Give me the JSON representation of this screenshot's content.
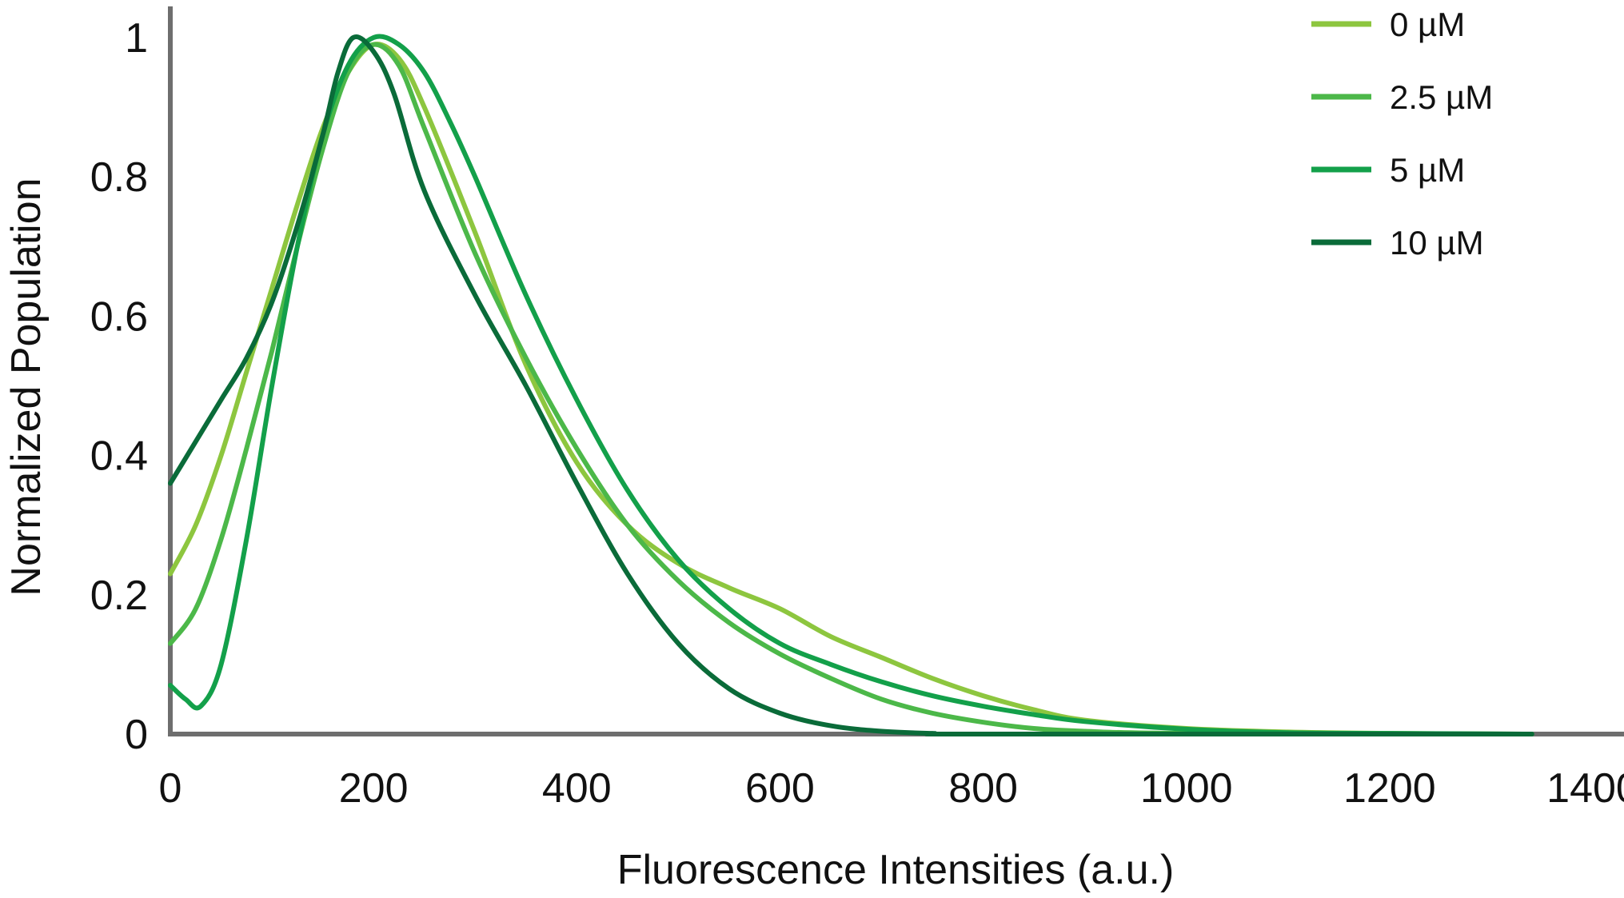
{
  "chart_data": {
    "type": "line",
    "title": "",
    "xlabel": "Fluorescence Intensities (a.u.)",
    "ylabel": "Normalized Population",
    "xlim": [
      0,
      1400
    ],
    "ylim": [
      0,
      1
    ],
    "x_ticks": [
      0,
      200,
      400,
      600,
      800,
      1000,
      1200,
      1400
    ],
    "y_ticks": [
      0,
      0.2,
      0.4,
      0.6,
      0.8,
      1
    ],
    "x_tick_labels": [
      "0",
      "200",
      "400",
      "600",
      "800",
      "1000",
      "1200",
      "1400"
    ],
    "y_tick_labels": [
      "0",
      "0.2",
      "0.4",
      "0.6",
      "0.8",
      "1"
    ],
    "grid": false,
    "legend_position": "top-right",
    "series": [
      {
        "name": "0 µM",
        "color": "#8DC63F",
        "points": [
          [
            0,
            0.23
          ],
          [
            25,
            0.3
          ],
          [
            50,
            0.4
          ],
          [
            75,
            0.52
          ],
          [
            100,
            0.64
          ],
          [
            125,
            0.76
          ],
          [
            150,
            0.87
          ],
          [
            175,
            0.95
          ],
          [
            200,
            0.99
          ],
          [
            225,
            0.97
          ],
          [
            250,
            0.9
          ],
          [
            300,
            0.72
          ],
          [
            350,
            0.53
          ],
          [
            400,
            0.39
          ],
          [
            450,
            0.3
          ],
          [
            500,
            0.245
          ],
          [
            550,
            0.21
          ],
          [
            600,
            0.18
          ],
          [
            650,
            0.14
          ],
          [
            700,
            0.11
          ],
          [
            750,
            0.08
          ],
          [
            800,
            0.055
          ],
          [
            850,
            0.035
          ],
          [
            900,
            0.02
          ],
          [
            1000,
            0.008
          ],
          [
            1100,
            0.003
          ],
          [
            1200,
            0.001
          ],
          [
            1340,
            0
          ]
        ]
      },
      {
        "name": "2.5 µM",
        "color": "#4CB849",
        "points": [
          [
            0,
            0.13
          ],
          [
            25,
            0.18
          ],
          [
            50,
            0.28
          ],
          [
            75,
            0.41
          ],
          [
            100,
            0.55
          ],
          [
            125,
            0.7
          ],
          [
            150,
            0.84
          ],
          [
            175,
            0.95
          ],
          [
            200,
            0.99
          ],
          [
            225,
            0.96
          ],
          [
            250,
            0.87
          ],
          [
            300,
            0.69
          ],
          [
            350,
            0.54
          ],
          [
            400,
            0.41
          ],
          [
            450,
            0.3
          ],
          [
            500,
            0.22
          ],
          [
            550,
            0.16
          ],
          [
            600,
            0.115
          ],
          [
            650,
            0.08
          ],
          [
            700,
            0.05
          ],
          [
            750,
            0.03
          ],
          [
            800,
            0.017
          ],
          [
            850,
            0.008
          ],
          [
            900,
            0.004
          ],
          [
            1000,
            0.001
          ],
          [
            1340,
            0
          ]
        ]
      },
      {
        "name": "5 µM",
        "color": "#13A04A",
        "points": [
          [
            0,
            0.07
          ],
          [
            15,
            0.05
          ],
          [
            30,
            0.04
          ],
          [
            50,
            0.1
          ],
          [
            75,
            0.28
          ],
          [
            100,
            0.5
          ],
          [
            125,
            0.7
          ],
          [
            150,
            0.86
          ],
          [
            175,
            0.96
          ],
          [
            200,
            1
          ],
          [
            225,
            0.99
          ],
          [
            250,
            0.95
          ],
          [
            275,
            0.88
          ],
          [
            300,
            0.8
          ],
          [
            350,
            0.63
          ],
          [
            400,
            0.48
          ],
          [
            450,
            0.35
          ],
          [
            500,
            0.25
          ],
          [
            550,
            0.18
          ],
          [
            600,
            0.13
          ],
          [
            650,
            0.1
          ],
          [
            700,
            0.075
          ],
          [
            750,
            0.055
          ],
          [
            800,
            0.04
          ],
          [
            850,
            0.028
          ],
          [
            900,
            0.018
          ],
          [
            1000,
            0.007
          ],
          [
            1100,
            0.002
          ],
          [
            1200,
            0.001
          ],
          [
            1340,
            0
          ]
        ]
      },
      {
        "name": "10 µM",
        "color": "#0A6B39",
        "points": [
          [
            0,
            0.36
          ],
          [
            25,
            0.42
          ],
          [
            50,
            0.48
          ],
          [
            75,
            0.54
          ],
          [
            100,
            0.62
          ],
          [
            125,
            0.73
          ],
          [
            150,
            0.86
          ],
          [
            165,
            0.95
          ],
          [
            180,
            1
          ],
          [
            200,
            0.98
          ],
          [
            220,
            0.92
          ],
          [
            250,
            0.78
          ],
          [
            300,
            0.63
          ],
          [
            350,
            0.5
          ],
          [
            400,
            0.36
          ],
          [
            450,
            0.23
          ],
          [
            500,
            0.13
          ],
          [
            550,
            0.065
          ],
          [
            600,
            0.03
          ],
          [
            650,
            0.012
          ],
          [
            700,
            0.004
          ],
          [
            750,
            0.001
          ],
          [
            800,
            0
          ],
          [
            1340,
            0
          ]
        ]
      }
    ]
  }
}
